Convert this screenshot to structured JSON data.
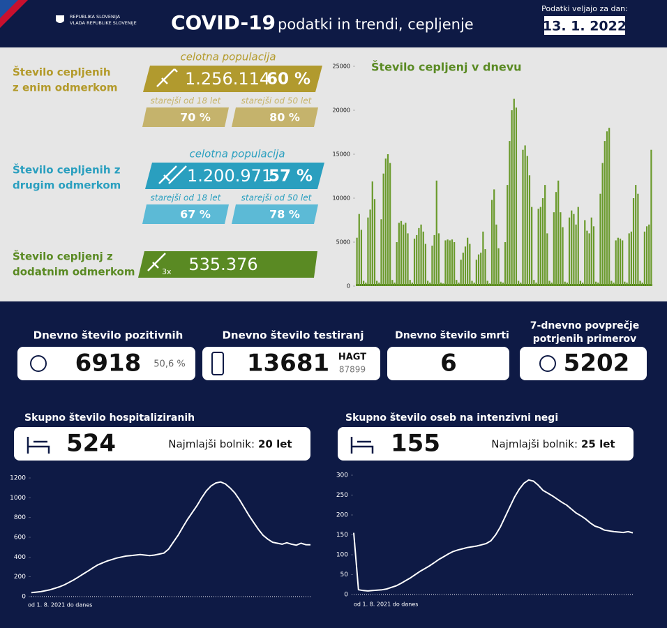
{
  "header": {
    "org1": "REPUBLIKA SLOVENIJA",
    "org2": "VLADA REPUBLIKE SLOVENIJE",
    "title": "COVID-19",
    "subtitle": "podatki in trendi, cepljenje",
    "date_label": "Podatki veljajo za dan:",
    "date": "13. 1. 2022"
  },
  "vaccination": {
    "first": {
      "label1": "Število cepljenih",
      "label2": "z enim odmerkom",
      "total_caption": "celotna populacija",
      "total": "1.256.114",
      "total_pct": "60 %",
      "age1_caption": "starejši od 18 let",
      "age1_pct": "70 %",
      "age2_caption": "starejši od 50 let",
      "age2_pct": "80 %"
    },
    "second": {
      "label1": "Število cepljenih z",
      "label2": "drugim odmerkom",
      "total_caption": "celotna populacija",
      "total": "1.200.971",
      "total_pct": "57 %",
      "age1_caption": "starejši od 18 let",
      "age1_pct": "67 %",
      "age2_caption": "starejši od 50 let",
      "age2_pct": "78 %"
    },
    "booster": {
      "label1": "Število cepljenj z",
      "label2": "dodatnim odmerkom",
      "dose": "3x",
      "total": "535.376"
    }
  },
  "stats": [
    {
      "title": "Dnevno število pozitivnih",
      "value": 6918,
      "extra": "50,6 %"
    },
    {
      "title": "Dnevno število testiranj",
      "value": 13681,
      "extra_label": "HAGT",
      "extra": 87899
    },
    {
      "title": "Dnevno število smrti",
      "value": 6
    },
    {
      "title1": "7-dnevno povprečje",
      "title2": "potrjenih primerov",
      "value": 5202
    }
  ],
  "hospital": [
    {
      "title": "Skupno število hospitaliziranih",
      "value": 524,
      "youngest_label": "Najmlajši bolnik:",
      "youngest": "20 let"
    },
    {
      "title": "Skupno število oseb na intenzivni negi",
      "value": 155,
      "youngest_label": "Najmlajši bolnik:",
      "youngest": "25 let"
    }
  ],
  "chart_data": [
    {
      "type": "bar",
      "title": "Število cepljenj v dnevu",
      "color": "#6a9a2c",
      "ylim": [
        0,
        25000
      ],
      "yticks": [
        0,
        5000,
        10000,
        15000,
        20000,
        25000
      ],
      "values": [
        5500,
        8200,
        6400,
        600,
        400,
        7800,
        8700,
        11900,
        9900,
        600,
        400,
        7600,
        12800,
        14500,
        15000,
        14000,
        700,
        400,
        5000,
        7200,
        7400,
        7000,
        7200,
        6000,
        700,
        400,
        5400,
        5800,
        6600,
        7000,
        6200,
        4800,
        600,
        400,
        4600,
        5800,
        12000,
        6000,
        400,
        300,
        5200,
        5300,
        5200,
        5300,
        5000,
        700,
        400,
        3000,
        3800,
        4500,
        5500,
        4800,
        600,
        400,
        3000,
        3600,
        3800,
        6200,
        4200,
        600,
        300,
        9800,
        11000,
        7000,
        4300,
        500,
        400,
        5000,
        11500,
        16500,
        20000,
        21300,
        20300,
        600,
        400,
        15500,
        16000,
        14800,
        12600,
        9000,
        700,
        400,
        8800,
        9000,
        10000,
        11500,
        6000,
        600,
        400,
        8400,
        10700,
        12000,
        8400,
        6700,
        500,
        400,
        7800,
        8600,
        8200,
        7000,
        9000,
        600,
        400,
        7500,
        6300,
        6000,
        7800,
        6800,
        500,
        400,
        10500,
        14000,
        16500,
        17600,
        18000,
        600,
        400,
        5200,
        5500,
        5400,
        5200,
        500,
        400,
        6000,
        6200,
        10000,
        11500,
        10500,
        600,
        400,
        6200,
        6800,
        7000,
        15500
      ]
    },
    {
      "type": "line",
      "color": "#ffffff",
      "x_label": "od 1. 8. 2021 do danes",
      "ylim": [
        0,
        1200
      ],
      "yticks": [
        0,
        200,
        400,
        600,
        800,
        1000,
        1200
      ],
      "values": [
        40,
        45,
        50,
        60,
        70,
        85,
        100,
        120,
        145,
        170,
        200,
        230,
        260,
        290,
        320,
        340,
        360,
        375,
        390,
        400,
        410,
        415,
        420,
        425,
        420,
        415,
        420,
        430,
        440,
        480,
        550,
        620,
        700,
        780,
        850,
        920,
        1000,
        1070,
        1120,
        1150,
        1160,
        1140,
        1100,
        1050,
        980,
        900,
        820,
        750,
        680,
        620,
        580,
        550,
        540,
        530,
        545,
        530,
        520,
        540,
        525,
        524
      ]
    },
    {
      "type": "line",
      "color": "#ffffff",
      "x_label": "od 1. 8. 2021 do danes",
      "ylim": [
        0,
        300
      ],
      "yticks": [
        0,
        50,
        100,
        150,
        200,
        250,
        300
      ],
      "values": [
        155,
        12,
        10,
        9,
        10,
        11,
        12,
        14,
        18,
        22,
        28,
        35,
        42,
        50,
        58,
        65,
        72,
        80,
        88,
        95,
        102,
        108,
        112,
        115,
        118,
        120,
        122,
        125,
        128,
        135,
        150,
        170,
        195,
        220,
        245,
        265,
        280,
        288,
        285,
        275,
        262,
        255,
        248,
        240,
        232,
        225,
        215,
        205,
        198,
        190,
        180,
        172,
        168,
        162,
        160,
        158,
        157,
        156,
        158,
        155
      ]
    }
  ]
}
